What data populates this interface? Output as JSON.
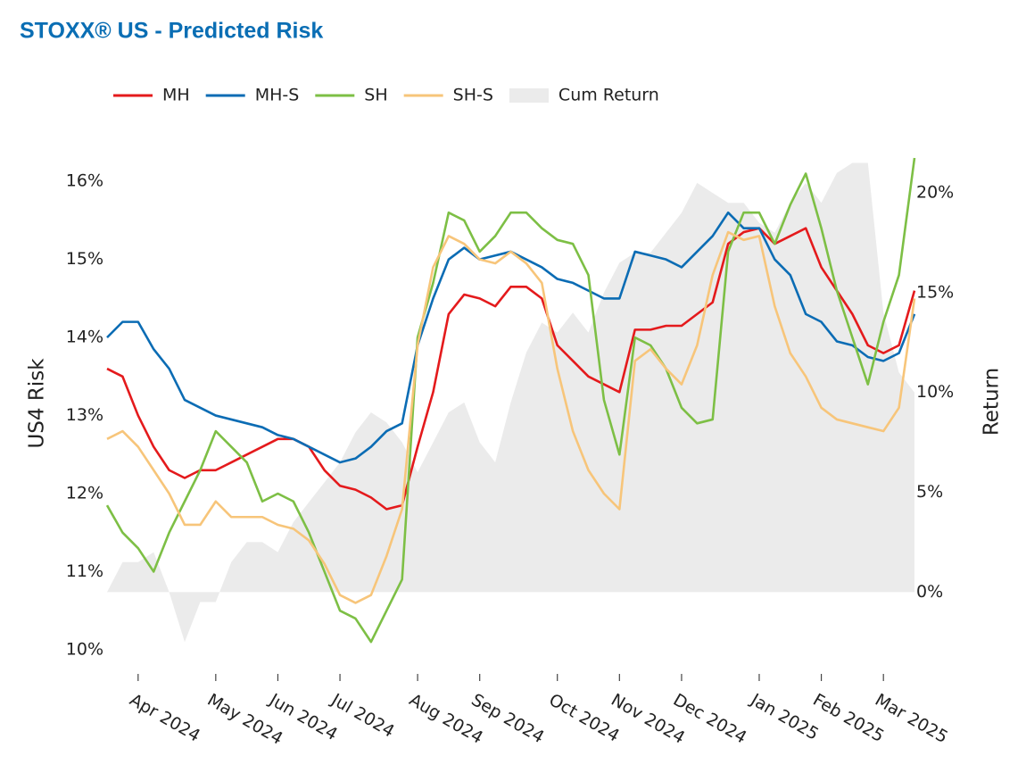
{
  "chart_data": {
    "type": "line",
    "title": "STOXX® US - Predicted Risk",
    "ylabel": "US4 Risk",
    "y2label": "Return",
    "categories": [
      null,
      null,
      "Apr 2024",
      null,
      null,
      null,
      null,
      "May 2024",
      null,
      null,
      null,
      "Jun 2024",
      null,
      null,
      null,
      "Jul 2024",
      null,
      null,
      null,
      null,
      "Aug 2024",
      null,
      null,
      null,
      "Sep 2024",
      null,
      null,
      null,
      null,
      "Oct 2024",
      null,
      null,
      null,
      "Nov 2024",
      null,
      null,
      null,
      "Dec 2024",
      null,
      null,
      null,
      null,
      "Jan 2025",
      null,
      null,
      null,
      "Feb 2025",
      null,
      null,
      null,
      "Mar 2025",
      null,
      null
    ],
    "ylim": [
      9.69,
      16.38
    ],
    "yticks": [
      {
        "value": 10,
        "label": "10%"
      },
      {
        "value": 11,
        "label": "11%"
      },
      {
        "value": 12,
        "label": "12%"
      },
      {
        "value": 13,
        "label": "13%"
      },
      {
        "value": 14,
        "label": "14%"
      },
      {
        "value": 15,
        "label": "15%"
      },
      {
        "value": 16,
        "label": "16%"
      }
    ],
    "y2lim": [
      -4.1,
      22.06
    ],
    "y2ticks": [
      {
        "value": 0,
        "label": "0%"
      },
      {
        "value": 5,
        "label": "5%"
      },
      {
        "value": 10,
        "label": "10%"
      },
      {
        "value": 15,
        "label": "15%"
      },
      {
        "value": 20,
        "label": "20%"
      }
    ],
    "series": [
      {
        "name": "MH",
        "color": "#e41a1c",
        "values": [
          13.6,
          13.5,
          13.0,
          12.6,
          12.3,
          12.2,
          12.3,
          12.3,
          12.4,
          12.5,
          12.6,
          12.7,
          12.7,
          12.6,
          12.3,
          12.1,
          12.05,
          11.95,
          11.8,
          11.85,
          12.6,
          13.3,
          14.3,
          14.55,
          14.5,
          14.4,
          14.65,
          14.65,
          14.5,
          13.9,
          13.7,
          13.5,
          13.4,
          13.3,
          14.1,
          14.1,
          14.15,
          14.15,
          14.3,
          14.45,
          15.2,
          15.35,
          15.4,
          15.2,
          15.3,
          15.4,
          14.9,
          14.6,
          14.3,
          13.9,
          13.8,
          13.9,
          14.6
        ]
      },
      {
        "name": "MH-S",
        "color": "#0b6cb4",
        "values": [
          14.0,
          14.2,
          14.2,
          13.85,
          13.6,
          13.2,
          13.1,
          13.0,
          12.95,
          12.9,
          12.85,
          12.75,
          12.7,
          12.6,
          12.5,
          12.4,
          12.45,
          12.6,
          12.8,
          12.9,
          13.9,
          14.5,
          15.0,
          15.15,
          15.0,
          15.05,
          15.1,
          15.0,
          14.9,
          14.75,
          14.7,
          14.6,
          14.5,
          14.5,
          15.1,
          15.05,
          15.0,
          14.9,
          15.1,
          15.3,
          15.6,
          15.4,
          15.4,
          15.0,
          14.8,
          14.3,
          14.2,
          13.95,
          13.9,
          13.75,
          13.7,
          13.8,
          14.3
        ]
      },
      {
        "name": "SH",
        "color": "#7dbf45",
        "values": [
          11.85,
          11.5,
          11.3,
          11.0,
          11.5,
          11.9,
          12.3,
          12.8,
          12.6,
          12.4,
          11.9,
          12.0,
          11.9,
          11.5,
          11.0,
          10.5,
          10.4,
          10.1,
          10.5,
          10.9,
          14.0,
          14.7,
          15.6,
          15.5,
          15.1,
          15.3,
          15.6,
          15.6,
          15.4,
          15.25,
          15.2,
          14.8,
          13.2,
          12.5,
          14.0,
          13.9,
          13.6,
          13.1,
          12.9,
          12.95,
          15.1,
          15.6,
          15.6,
          15.2,
          15.7,
          16.1,
          15.4,
          14.6,
          14.0,
          13.4,
          14.2,
          14.8,
          16.3
        ]
      },
      {
        "name": "SH-S",
        "color": "#f7c57a",
        "values": [
          12.7,
          12.8,
          12.6,
          12.3,
          12.0,
          11.6,
          11.6,
          11.9,
          11.7,
          11.7,
          11.7,
          11.6,
          11.55,
          11.4,
          11.1,
          10.7,
          10.6,
          10.7,
          11.2,
          11.8,
          13.9,
          14.9,
          15.3,
          15.2,
          15.0,
          14.95,
          15.1,
          14.95,
          14.7,
          13.6,
          12.8,
          12.3,
          12.0,
          11.8,
          13.7,
          13.85,
          13.6,
          13.4,
          13.9,
          14.8,
          15.35,
          15.25,
          15.3,
          14.4,
          13.8,
          13.5,
          13.1,
          12.95,
          12.9,
          12.85,
          12.8,
          13.1,
          14.5
        ]
      },
      {
        "name": "Cum Return",
        "color": "#ebebeb",
        "axis": "y2",
        "type": "area",
        "values": [
          0,
          1.5,
          1.5,
          2.0,
          0,
          -2.5,
          -0.5,
          -0.5,
          1.5,
          2.5,
          2.5,
          2.0,
          3.5,
          4.5,
          5.5,
          6.5,
          8.0,
          9.0,
          8.5,
          7.5,
          6.0,
          7.5,
          9.0,
          9.5,
          7.5,
          6.5,
          9.5,
          12.0,
          13.5,
          13.0,
          14.0,
          13.0,
          15.0,
          16.5,
          17.0,
          17.0,
          18.0,
          19.0,
          20.5,
          20.0,
          19.5,
          19.5,
          18.5,
          18.0,
          19.5,
          20.5,
          19.5,
          21.0,
          21.5,
          21.5,
          14.0,
          11.0,
          10.0
        ]
      }
    ]
  }
}
